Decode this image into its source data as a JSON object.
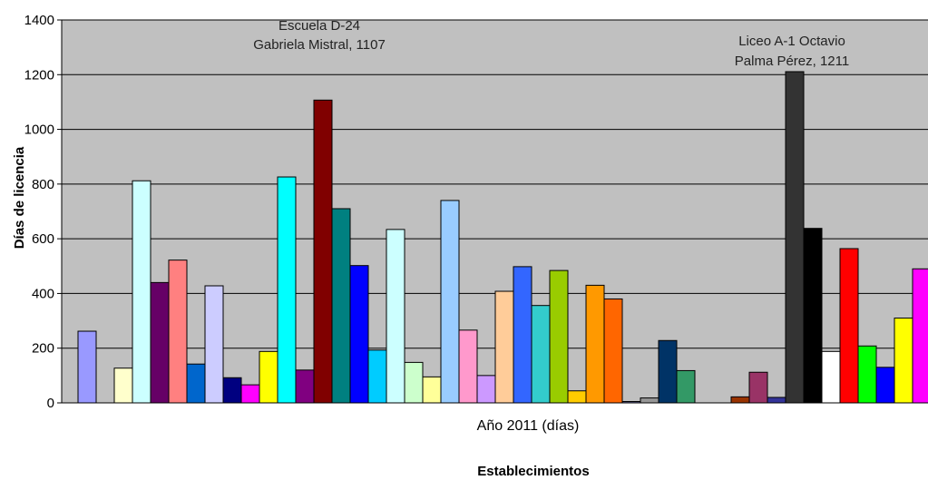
{
  "chart_data": {
    "type": "bar",
    "title": "",
    "xlabel": "Año 2011 (días)",
    "xtitle": "Establecimientos",
    "ylabel": "Días de licencia",
    "ylim": [
      0,
      1400
    ],
    "yticks": [
      0,
      200,
      400,
      600,
      800,
      1000,
      1200,
      1400
    ],
    "ytick_labels": [
      "0",
      "200",
      "400",
      "600",
      "800",
      "1000",
      "1200",
      "1400"
    ],
    "grid": true,
    "plot_background": "#c0c0c0",
    "annotations": [
      {
        "lines": [
          "Escuela D-24",
          "Gabriela Mistral, 1107"
        ]
      },
      {
        "lines": [
          "Liceo A-1 Octavio",
          "Palma Pérez, 1211"
        ]
      }
    ],
    "series": [
      {
        "value": 262,
        "color": "#9999ff"
      },
      {
        "value": 0,
        "color": "#993366"
      },
      {
        "value": 127,
        "color": "#ffffcc"
      },
      {
        "value": 812,
        "color": "#ccffff"
      },
      {
        "value": 440,
        "color": "#660066"
      },
      {
        "value": 522,
        "color": "#ff8080"
      },
      {
        "value": 142,
        "color": "#0066cc"
      },
      {
        "value": 428,
        "color": "#ccccff"
      },
      {
        "value": 92,
        "color": "#000080"
      },
      {
        "value": 66,
        "color": "#ff00ff"
      },
      {
        "value": 188,
        "color": "#ffff00"
      },
      {
        "value": 826,
        "color": "#00ffff"
      },
      {
        "value": 120,
        "color": "#800080"
      },
      {
        "value": 1107,
        "color": "#800000"
      },
      {
        "value": 710,
        "color": "#008080"
      },
      {
        "value": 502,
        "color": "#0000ff"
      },
      {
        "value": 193,
        "color": "#00ccff"
      },
      {
        "value": 634,
        "color": "#ccffff"
      },
      {
        "value": 148,
        "color": "#ccffcc"
      },
      {
        "value": 95,
        "color": "#ffff99"
      },
      {
        "value": 740,
        "color": "#99ccff"
      },
      {
        "value": 266,
        "color": "#ff99cc"
      },
      {
        "value": 100,
        "color": "#cc99ff"
      },
      {
        "value": 408,
        "color": "#ffcc99"
      },
      {
        "value": 498,
        "color": "#3366ff"
      },
      {
        "value": 356,
        "color": "#33cccc"
      },
      {
        "value": 484,
        "color": "#99cc00"
      },
      {
        "value": 44,
        "color": "#ffcc00"
      },
      {
        "value": 430,
        "color": "#ff9900"
      },
      {
        "value": 380,
        "color": "#ff6600"
      },
      {
        "value": 5,
        "color": "#666699"
      },
      {
        "value": 18,
        "color": "#969696"
      },
      {
        "value": 228,
        "color": "#003366"
      },
      {
        "value": 118,
        "color": "#339966"
      },
      {
        "value": 0,
        "color": "#003300"
      },
      {
        "value": 0,
        "color": "#333300"
      },
      {
        "value": 22,
        "color": "#993300"
      },
      {
        "value": 112,
        "color": "#993366"
      },
      {
        "value": 20,
        "color": "#333399"
      },
      {
        "value": 1211,
        "color": "#333333"
      },
      {
        "value": 638,
        "color": "#000000"
      },
      {
        "value": 188,
        "color": "#ffffff"
      },
      {
        "value": 564,
        "color": "#ff0000"
      },
      {
        "value": 208,
        "color": "#00ff00"
      },
      {
        "value": 130,
        "color": "#0000ff"
      },
      {
        "value": 310,
        "color": "#ffff00"
      },
      {
        "value": 490,
        "color": "#ff00ff"
      }
    ]
  }
}
